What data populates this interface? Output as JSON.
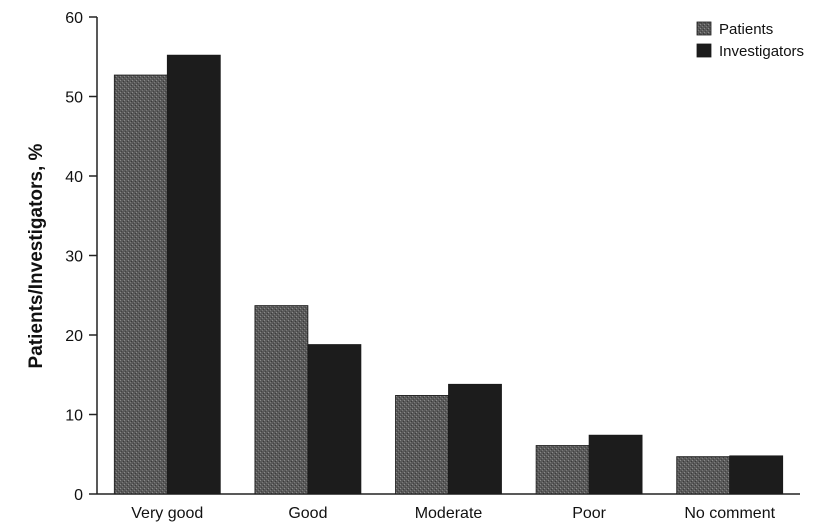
{
  "chart_data": {
    "type": "bar",
    "categories": [
      "Very good",
      "Good",
      "Moderate",
      "Poor",
      "No comment"
    ],
    "series": [
      {
        "name": "Patients",
        "values": [
          52.7,
          23.7,
          12.4,
          6.1,
          4.7
        ],
        "color": "#555555"
      },
      {
        "name": "Investigators",
        "values": [
          55.2,
          18.8,
          13.8,
          7.4,
          4.8
        ],
        "color": "#1c1c1c"
      }
    ],
    "ylabel": "Patients/Investigators, %",
    "xlabel": "",
    "ylim": [
      0,
      60
    ],
    "yticks": [
      0,
      10,
      20,
      30,
      40,
      50,
      60
    ],
    "grid": false,
    "legend_position": "top-right"
  }
}
